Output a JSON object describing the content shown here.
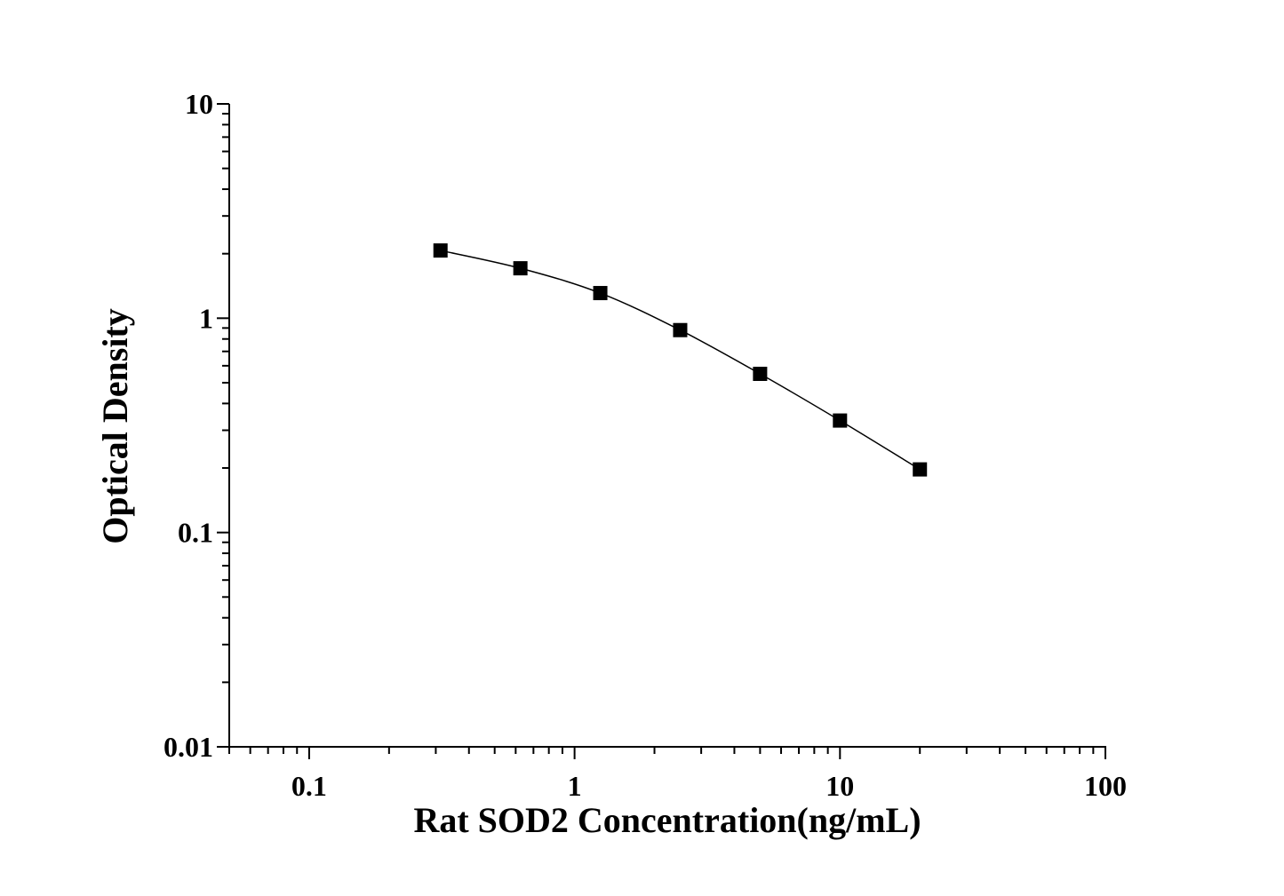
{
  "chart_data": {
    "type": "line",
    "x_label": "Rat SOD2 Concentration(ng/mL)",
    "y_label": "Optical Density",
    "x": [
      0.3125,
      0.625,
      1.25,
      2.5,
      5,
      10,
      20
    ],
    "series": [
      {
        "color": "#000000",
        "values": [
          2.07,
          1.71,
          1.31,
          0.88,
          0.55,
          0.333,
          0.197
        ]
      }
    ],
    "xlim": [
      0.05,
      100
    ],
    "ylim": [
      0.01,
      10
    ],
    "xticks": [
      0.1,
      1,
      10,
      100
    ],
    "yticks": [
      0.01,
      0.1,
      1,
      10
    ],
    "xscale": "log",
    "yscale": "log",
    "minor_ticks": true,
    "grid": false,
    "marker": "square"
  }
}
